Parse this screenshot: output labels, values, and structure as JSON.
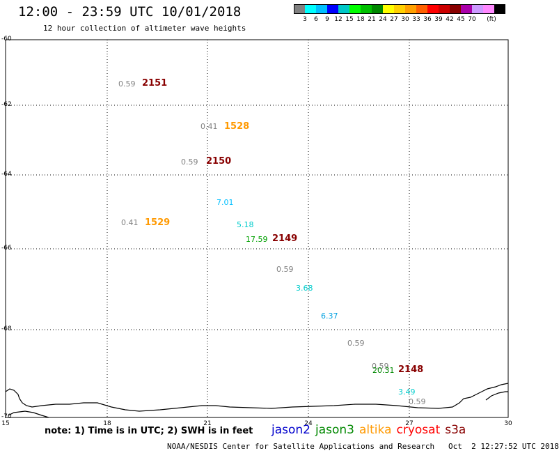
{
  "header": {
    "title": "12:00 - 23:59 UTC 10/01/2018",
    "subtitle": "12 hour collection of altimeter wave heights"
  },
  "colorbar": {
    "colors": [
      "#808080",
      "#00ffff",
      "#00bfff",
      "#0000ff",
      "#00c8c8",
      "#00ff00",
      "#00c000",
      "#008800",
      "#ffff00",
      "#ffd000",
      "#ffa000",
      "#ff6000",
      "#ff0000",
      "#cc0000",
      "#880000",
      "#aa00aa",
      "#cc99ff",
      "#ff88ff",
      "#000000"
    ],
    "labels": [
      "3",
      "6",
      "9",
      "12",
      "15",
      "18",
      "21",
      "24",
      "27",
      "30",
      "33",
      "36",
      "39",
      "42",
      "45",
      "70"
    ],
    "unit": "(ft)"
  },
  "axes": {
    "lat_labels": [
      "-60",
      "-62",
      "-64",
      "-66",
      "-68",
      "-70"
    ],
    "lon_labels": [
      "15",
      "18",
      "21",
      "24",
      "27",
      "30"
    ]
  },
  "map": {
    "lon_range": [
      15,
      30
    ],
    "lat_range": [
      -70,
      -60
    ]
  },
  "observations": [
    {
      "text": "0.59",
      "color": "#808080"
    },
    {
      "text": "0.41",
      "color": "#808080"
    },
    {
      "text": "0.59",
      "color": "#808080"
    },
    {
      "text": "7.01",
      "color": "#00bfff"
    },
    {
      "text": "0.41",
      "color": "#808080"
    },
    {
      "text": "5.18",
      "color": "#00cccc"
    },
    {
      "text": "17.59",
      "color": "#00a000"
    },
    {
      "text": "0.59",
      "color": "#808080"
    },
    {
      "text": "3.68",
      "color": "#00cccc"
    },
    {
      "text": "6.37",
      "color": "#00a0e0"
    },
    {
      "text": "0.59",
      "color": "#808080"
    },
    {
      "text": "0.59",
      "color": "#808080"
    },
    {
      "text": "20.31",
      "color": "#008800"
    },
    {
      "text": "3.49",
      "color": "#00cccc"
    },
    {
      "text": "0.59",
      "color": "#808080"
    }
  ],
  "passes": [
    {
      "text": "2151",
      "color": "#880000"
    },
    {
      "text": "1528",
      "color": "#ff9900"
    },
    {
      "text": "2150",
      "color": "#880000"
    },
    {
      "text": "1529",
      "color": "#ff9900"
    },
    {
      "text": "2149",
      "color": "#880000"
    },
    {
      "text": "2148",
      "color": "#880000"
    }
  ],
  "footer": {
    "note": "note: 1) Time is in UTC; 2) SWH is in feet",
    "legend": [
      {
        "text": "jason2",
        "color": "#0000cc"
      },
      {
        "text": "jason3",
        "color": "#008800"
      },
      {
        "text": "altika",
        "color": "#ff9900"
      },
      {
        "text": "cryosat",
        "color": "#ff0000"
      },
      {
        "text": "s3a",
        "color": "#880000"
      }
    ],
    "credit": "NOAA/NESDIS Center for Satellite Applications and Research   Oct  2 12:27:52 UTC 2018"
  }
}
